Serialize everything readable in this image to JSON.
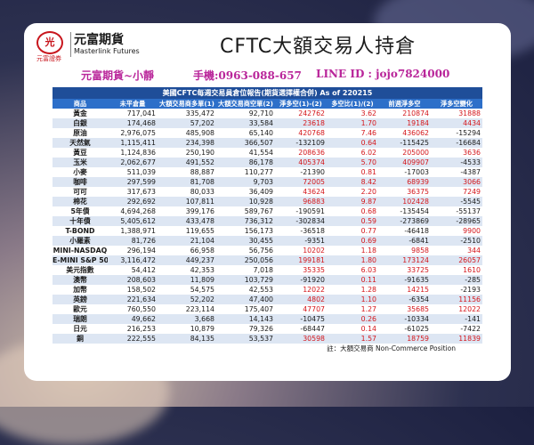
{
  "brand": {
    "logo_text": "光",
    "logo_sub": "元富證券",
    "name_cn": "元富期貨",
    "name_en": "Masterlink Futures"
  },
  "title": "CFTC大額交易人持倉",
  "contact": {
    "agent": "元富期貨~小靜",
    "phone": "手機:0963-088-657",
    "line": "LINE ID : jojo7824000"
  },
  "table": {
    "caption": "美國CFTC每週交易員倉位報告(期貨選擇權合併) As of  220215",
    "headers": [
      "商品",
      "未平倉量",
      "大額交易商多單(1)",
      "大額交易商空單(2)",
      "淨多空(1)-(2)",
      "多空比(1)/(2)",
      "前週淨多空",
      "淨多空變化"
    ],
    "rows": [
      {
        "name": "黃金",
        "oi": "717,041",
        "long": "335,472",
        "short": "92,710",
        "net": "242762",
        "ratio": "3.62",
        "prev": "210874",
        "chg": "31888"
      },
      {
        "name": "白銀",
        "oi": "174,468",
        "long": "57,202",
        "short": "33,584",
        "net": "23618",
        "ratio": "1.70",
        "prev": "19184",
        "chg": "4434"
      },
      {
        "name": "原油",
        "oi": "2,976,075",
        "long": "485,908",
        "short": "65,140",
        "net": "420768",
        "ratio": "7.46",
        "prev": "436062",
        "chg": "-15294"
      },
      {
        "name": "天然氣",
        "oi": "1,115,411",
        "long": "234,398",
        "short": "366,507",
        "net": "-132109",
        "ratio": "0.64",
        "prev": "-115425",
        "chg": "-16684"
      },
      {
        "name": "黃豆",
        "oi": "1,124,836",
        "long": "250,190",
        "short": "41,554",
        "net": "208636",
        "ratio": "6.02",
        "prev": "205000",
        "chg": "3636"
      },
      {
        "name": "玉米",
        "oi": "2,062,677",
        "long": "491,552",
        "short": "86,178",
        "net": "405374",
        "ratio": "5.70",
        "prev": "409907",
        "chg": "-4533"
      },
      {
        "name": "小麥",
        "oi": "511,039",
        "long": "88,887",
        "short": "110,277",
        "net": "-21390",
        "ratio": "0.81",
        "prev": "-17003",
        "chg": "-4387"
      },
      {
        "name": "咖啡",
        "oi": "297,599",
        "long": "81,708",
        "short": "9,703",
        "net": "72005",
        "ratio": "8.42",
        "prev": "68939",
        "chg": "3066"
      },
      {
        "name": "可可",
        "oi": "317,673",
        "long": "80,033",
        "short": "36,409",
        "net": "43624",
        "ratio": "2.20",
        "prev": "36375",
        "chg": "7249"
      },
      {
        "name": "棉花",
        "oi": "292,692",
        "long": "107,811",
        "short": "10,928",
        "net": "96883",
        "ratio": "9.87",
        "prev": "102428",
        "chg": "-5545"
      },
      {
        "name": "5年債",
        "oi": "4,694,268",
        "long": "399,176",
        "short": "589,767",
        "net": "-190591",
        "ratio": "0.68",
        "prev": "-135454",
        "chg": "-55137"
      },
      {
        "name": "十年債",
        "oi": "5,405,612",
        "long": "433,478",
        "short": "736,312",
        "net": "-302834",
        "ratio": "0.59",
        "prev": "-273869",
        "chg": "-28965"
      },
      {
        "name": "T-BOND",
        "oi": "1,388,971",
        "long": "119,655",
        "short": "156,173",
        "net": "-36518",
        "ratio": "0.77",
        "prev": "-46418",
        "chg": "9900"
      },
      {
        "name": "小羅素",
        "oi": "81,726",
        "long": "21,104",
        "short": "30,455",
        "net": "-9351",
        "ratio": "0.69",
        "prev": "-6841",
        "chg": "-2510"
      },
      {
        "name": "MINI-NASDAQ",
        "oi": "296,194",
        "long": "66,958",
        "short": "56,756",
        "net": "10202",
        "ratio": "1.18",
        "prev": "9858",
        "chg": "344"
      },
      {
        "name": "E-MINI S&P 500",
        "oi": "3,116,472",
        "long": "449,237",
        "short": "250,056",
        "net": "199181",
        "ratio": "1.80",
        "prev": "173124",
        "chg": "26057"
      },
      {
        "name": "美元指數",
        "oi": "54,412",
        "long": "42,353",
        "short": "7,018",
        "net": "35335",
        "ratio": "6.03",
        "prev": "33725",
        "chg": "1610"
      },
      {
        "name": "澳幣",
        "oi": "208,603",
        "long": "11,809",
        "short": "103,729",
        "net": "-91920",
        "ratio": "0.11",
        "prev": "-91635",
        "chg": "-285"
      },
      {
        "name": "加幣",
        "oi": "158,502",
        "long": "54,575",
        "short": "42,553",
        "net": "12022",
        "ratio": "1.28",
        "prev": "14215",
        "chg": "-2193"
      },
      {
        "name": "英鎊",
        "oi": "221,634",
        "long": "52,202",
        "short": "47,400",
        "net": "4802",
        "ratio": "1.10",
        "prev": "-6354",
        "chg": "11156"
      },
      {
        "name": "歐元",
        "oi": "760,550",
        "long": "223,114",
        "short": "175,407",
        "net": "47707",
        "ratio": "1.27",
        "prev": "35685",
        "chg": "12022"
      },
      {
        "name": "瑞朗",
        "oi": "49,662",
        "long": "3,668",
        "short": "14,143",
        "net": "-10475",
        "ratio": "0.26",
        "prev": "-10334",
        "chg": "-141"
      },
      {
        "name": "日元",
        "oi": "216,253",
        "long": "10,879",
        "short": "79,326",
        "net": "-68447",
        "ratio": "0.14",
        "prev": "-61025",
        "chg": "-7422"
      },
      {
        "name": "銅",
        "oi": "222,555",
        "long": "84,135",
        "short": "53,537",
        "net": "30598",
        "ratio": "1.57",
        "prev": "18759",
        "chg": "11839"
      }
    ],
    "footer": "註：大額交易商 Non-Commerce Position"
  },
  "colors": {
    "header_bg": "#2d6fc9",
    "caption_bg": "#1f4e99",
    "positive": "#d4161b",
    "negative": "#1a1a1a",
    "accent_contact": "#b9259a",
    "row_alt": "#dde6f3"
  }
}
